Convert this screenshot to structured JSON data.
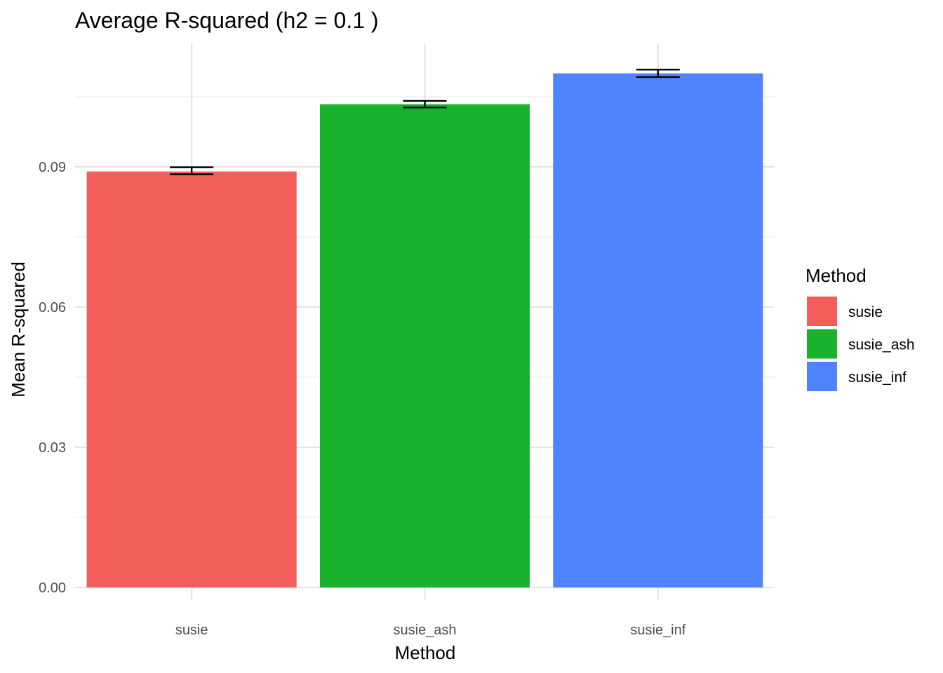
{
  "chart_data": {
    "type": "bar",
    "title": "Average R-squared (h2 = 0.1 )",
    "xlabel": "Method",
    "ylabel": "Mean R-squared",
    "categories": [
      "susie",
      "susie_ash",
      "susie_inf"
    ],
    "values": [
      0.089,
      0.1034,
      0.11
    ],
    "error": [
      {
        "low": 0.0884,
        "high": 0.0899
      },
      {
        "low": 0.1027,
        "high": 0.1041
      },
      {
        "low": 0.1092,
        "high": 0.1108
      }
    ],
    "colors": [
      "#F35E5A",
      "#1AB22C",
      "#5083FF"
    ],
    "ylim": [
      0,
      0.1155
    ],
    "yticks": [
      0.0,
      0.03,
      0.06,
      0.09
    ],
    "ytick_labels": [
      "0.00",
      "0.03",
      "0.06",
      "0.09"
    ],
    "grid": true,
    "legend": {
      "title": "Method",
      "position": "right",
      "entries": [
        "susie",
        "susie_ash",
        "susie_inf"
      ]
    }
  }
}
